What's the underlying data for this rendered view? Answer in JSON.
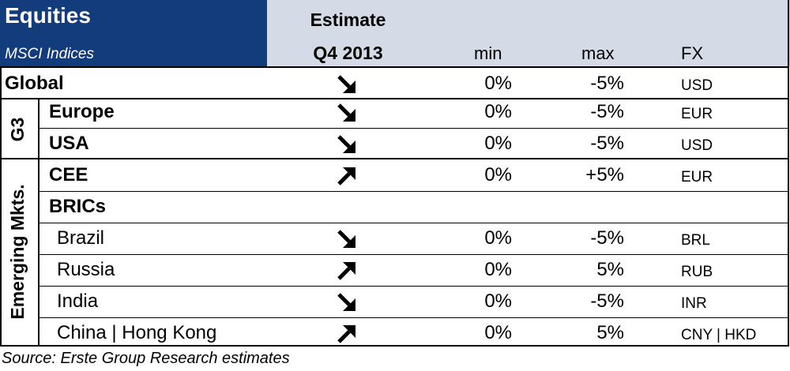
{
  "header": {
    "title": "Equities",
    "subtitle": "MSCI Indices",
    "estimate_line1": "Estimate",
    "estimate_line2": "Q4 2013",
    "col_min": "min",
    "col_max": "max",
    "col_fx": "FX",
    "colors": {
      "title_bg": "#123c7c",
      "band_bg": "#d4dae6"
    }
  },
  "groups": {
    "g3": "G3",
    "emerging": "Emerging Mkts."
  },
  "rows": [
    {
      "name": "Global",
      "bold": true,
      "trend": "down",
      "min": "0%",
      "max": "-5%",
      "fx": "USD"
    },
    {
      "name": "Europe",
      "bold": true,
      "trend": "down",
      "min": "0%",
      "max": "-5%",
      "fx": "EUR"
    },
    {
      "name": "USA",
      "bold": true,
      "trend": "down",
      "min": "0%",
      "max": "-5%",
      "fx": "USD"
    },
    {
      "name": "CEE",
      "bold": true,
      "trend": "up",
      "min": "0%",
      "max": "+5%",
      "fx": "EUR"
    },
    {
      "name": "BRICs",
      "bold": true,
      "trend": "",
      "min": "",
      "max": "",
      "fx": ""
    },
    {
      "name": "Brazil",
      "bold": false,
      "trend": "down",
      "min": "0%",
      "max": "-5%",
      "fx": "BRL"
    },
    {
      "name": "Russia",
      "bold": false,
      "trend": "up",
      "min": "0%",
      "max": "5%",
      "fx": "RUB"
    },
    {
      "name": "India",
      "bold": false,
      "trend": "down",
      "min": "0%",
      "max": "-5%",
      "fx": "INR"
    },
    {
      "name": "China | Hong Kong",
      "bold": false,
      "trend": "up",
      "min": "0%",
      "max": "5%",
      "fx": "CNY | HKD"
    }
  ],
  "icons": {
    "down": "arrow-down-right-icon",
    "up": "arrow-up-right-icon"
  },
  "source": "Source: Erste Group Research estimates"
}
